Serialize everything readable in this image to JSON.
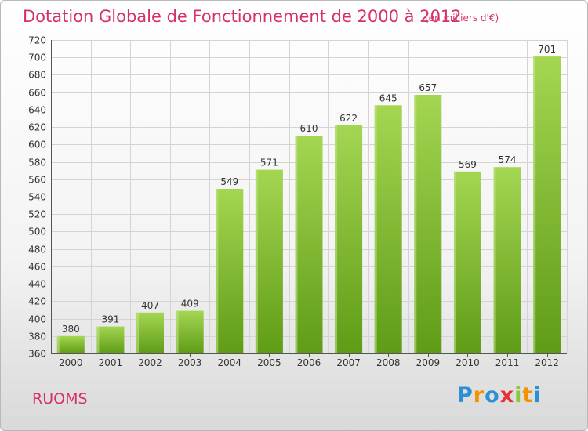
{
  "header": {
    "title": "Dotation Globale de Fonctionnement de 2000 à 2012",
    "unit": "(en milliers d'€)"
  },
  "footer": {
    "commune": "RUOMS",
    "brand": [
      "P",
      "r",
      "o",
      "x",
      "i",
      "t",
      "i"
    ]
  },
  "colors": {
    "title": "#d6306a",
    "bar_light": "#9fd24a",
    "bar_dark": "#63a019",
    "brand": [
      "#2e8fd6",
      "#f39200",
      "#2e8fd6",
      "#e53238",
      "#8dc63f",
      "#f39200",
      "#2e8fd6"
    ]
  },
  "chart_data": {
    "type": "bar",
    "categories": [
      "2000",
      "2001",
      "2002",
      "2003",
      "2004",
      "2005",
      "2006",
      "2007",
      "2008",
      "2009",
      "2010",
      "2011",
      "2012"
    ],
    "values": [
      380,
      391,
      407,
      409,
      549,
      571,
      610,
      622,
      645,
      657,
      569,
      574,
      701
    ],
    "ylim": [
      360,
      720
    ],
    "yticks": [
      360,
      380,
      400,
      420,
      440,
      460,
      480,
      500,
      520,
      540,
      560,
      580,
      600,
      620,
      640,
      660,
      680,
      700,
      720
    ],
    "grid": true,
    "data_labels": true
  }
}
